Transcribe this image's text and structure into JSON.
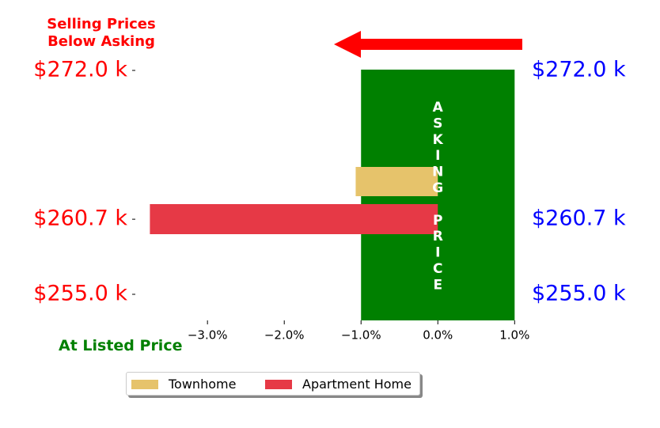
{
  "header": {
    "title_line1": "Selling Prices",
    "title_line2": "Below Asking",
    "bottom_label": "At Listed Price"
  },
  "chart_data": {
    "type": "bar",
    "orientation": "horizontal",
    "price_levels": [
      {
        "label": "$272.0 k",
        "value": 272.0
      },
      {
        "label": "$260.7 k",
        "value": 260.7
      },
      {
        "label": "$255.0 k",
        "value": 255.0
      }
    ],
    "x_ticks": [
      {
        "label": "−3.0%",
        "value": -3.0
      },
      {
        "label": "−2.0%",
        "value": -2.0
      },
      {
        "label": "−1.0%",
        "value": -1.0
      },
      {
        "label": "0.0%",
        "value": 0.0
      },
      {
        "label": "1.0%",
        "value": 1.0
      }
    ],
    "xlim": [
      -3.95,
      1.1
    ],
    "series": [
      {
        "name": "Townhome",
        "color": "#e6c36b",
        "values": [
          -1.07
        ]
      },
      {
        "name": "Apartment Home",
        "color": "#e63946",
        "values": [
          -3.75
        ]
      }
    ],
    "asking_band": {
      "text": "ASKING PRICE",
      "color": "#008000",
      "x_range": [
        -1.0,
        1.0
      ]
    },
    "arrow_color": "#ff0000",
    "left_label_color": "#ff0000",
    "right_label_color": "#0000ff",
    "legend_position": "lower-center"
  }
}
